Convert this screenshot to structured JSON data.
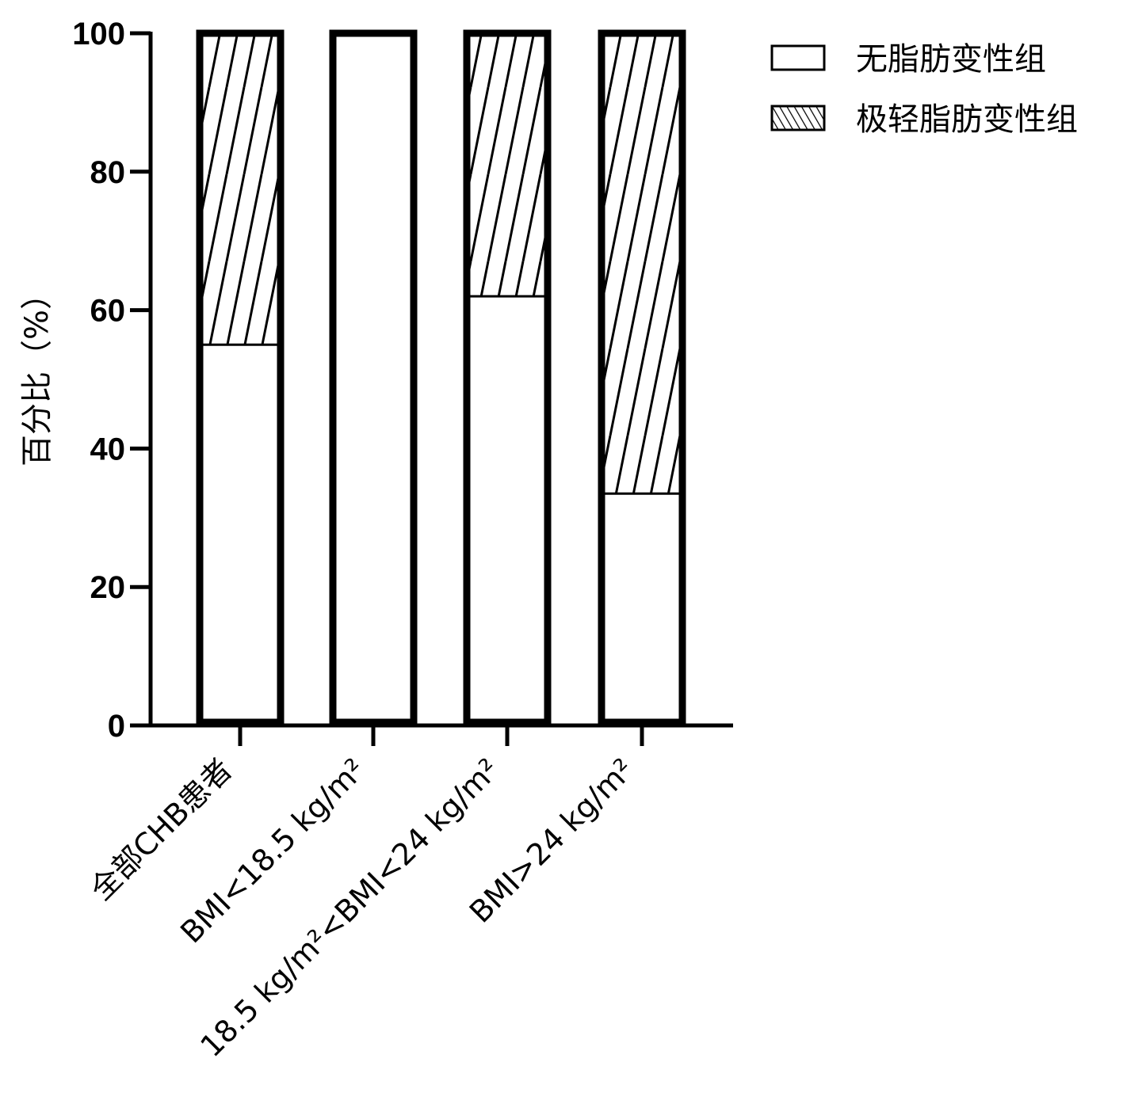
{
  "chart_data": {
    "type": "bar",
    "stacked": true,
    "ylabel": "百分比（%）",
    "ylim": [
      0,
      100
    ],
    "yticks": [
      0,
      20,
      40,
      60,
      80,
      100
    ],
    "categories": [
      "全部CHB患者",
      "BMI<18.5 kg/m²",
      "18.5 kg/m²<BMI<24 kg/m²",
      "BMI>24 kg/m²"
    ],
    "series": [
      {
        "name": "无脂肪变性组",
        "fill": "plain",
        "values": [
          55,
          100,
          62,
          33.5
        ]
      },
      {
        "name": "极轻脂肪变性组",
        "fill": "hatched",
        "values": [
          45,
          0,
          38,
          66.5
        ]
      }
    ],
    "legend": "top-right",
    "grid": false,
    "colors": {
      "ink": "#000000",
      "background": "#ffffff"
    }
  }
}
